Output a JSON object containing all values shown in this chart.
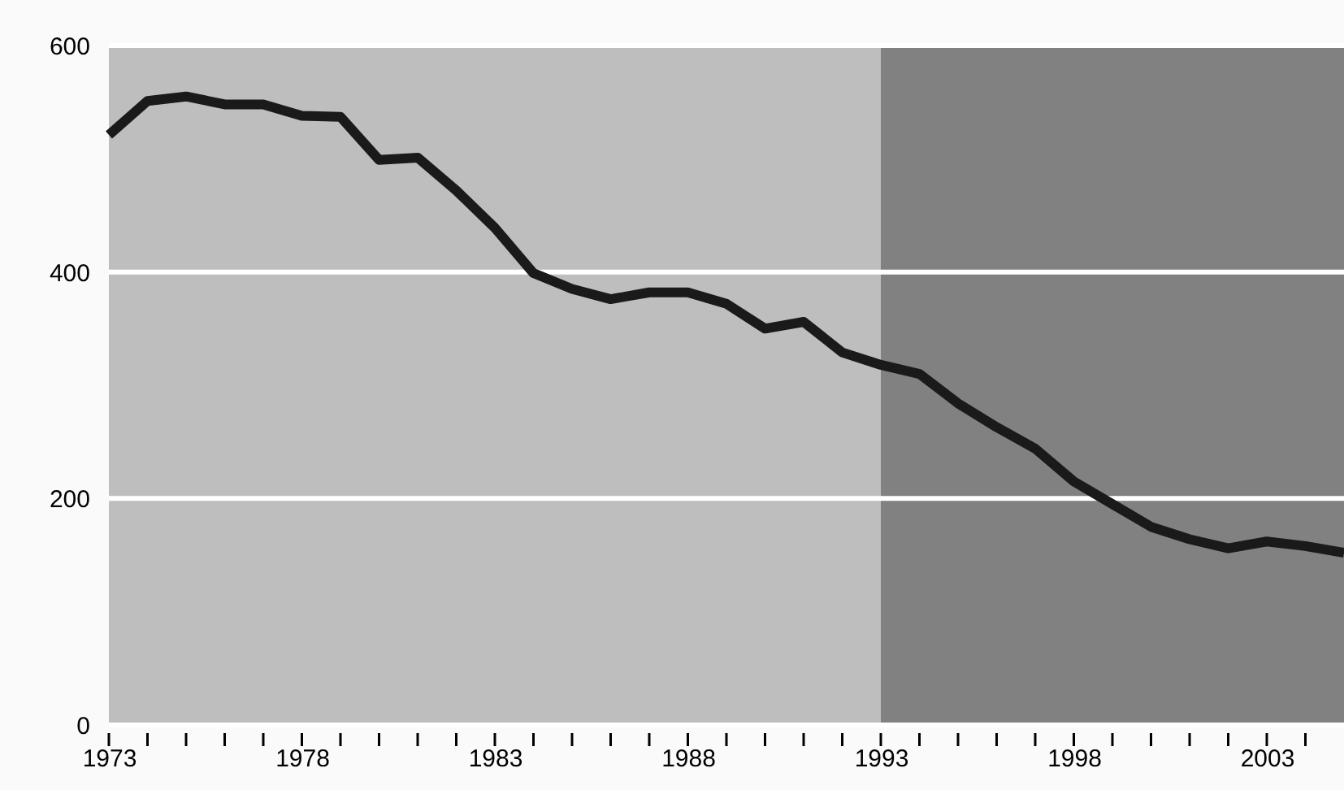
{
  "chart_data": {
    "type": "line",
    "x": [
      1973,
      1974,
      1975,
      1976,
      1977,
      1978,
      1979,
      1980,
      1981,
      1982,
      1983,
      1984,
      1985,
      1986,
      1987,
      1988,
      1989,
      1990,
      1991,
      1992,
      1993,
      1994,
      1995,
      1996,
      1997,
      1998,
      1999,
      2000,
      2001,
      2002,
      2003,
      2004,
      2005
    ],
    "series": [
      {
        "color": "#1a1a1a",
        "values": [
          521,
          551,
          555,
          548,
          548,
          538,
          537,
          499,
          501,
          472,
          439,
          399,
          385,
          376,
          382,
          382,
          372,
          350,
          356,
          329,
          318,
          310,
          284,
          263,
          244,
          215,
          195,
          175,
          164,
          156,
          162,
          158,
          152
        ]
      }
    ],
    "xlim": [
      1973,
      2005
    ],
    "xticks": [
      1973,
      {
        "value": 1974,
        "label": null
      },
      {
        "value": 1975,
        "label": null
      },
      {
        "value": 1976,
        "label": null
      },
      {
        "value": 1977,
        "label": null
      },
      1978,
      {
        "value": 1979,
        "label": null
      },
      {
        "value": 1980,
        "label": null
      },
      {
        "value": 1981,
        "label": null
      },
      {
        "value": 1982,
        "label": null
      },
      1983,
      {
        "value": 1984,
        "label": null
      },
      {
        "value": 1985,
        "label": null
      },
      {
        "value": 1986,
        "label": null
      },
      {
        "value": 1987,
        "label": null
      },
      1988,
      {
        "value": 1989,
        "label": null
      },
      {
        "value": 1990,
        "label": null
      },
      {
        "value": 1991,
        "label": null
      },
      {
        "value": 1992,
        "label": null
      },
      1993,
      {
        "value": 1994,
        "label": null
      },
      {
        "value": 1995,
        "label": null
      },
      {
        "value": 1996,
        "label": null
      },
      {
        "value": 1997,
        "label": null
      },
      1998,
      {
        "value": 1999,
        "label": null
      },
      {
        "value": 2000,
        "label": null
      },
      {
        "value": 2001,
        "label": null
      },
      {
        "value": 2002,
        "label": null
      },
      2003,
      {
        "value": 2004,
        "label": null
      }
    ],
    "ylim": [
      0,
      600
    ],
    "yticks": [
      0,
      200,
      400,
      600
    ],
    "grid": "y",
    "bands": [
      {
        "axis": "x",
        "from": 1973,
        "to": 1993,
        "color": "#bebebe"
      },
      {
        "axis": "x",
        "from": 1993,
        "to": 2005,
        "color": "#818181"
      }
    ],
    "marker": "none",
    "line_style": "solid"
  }
}
